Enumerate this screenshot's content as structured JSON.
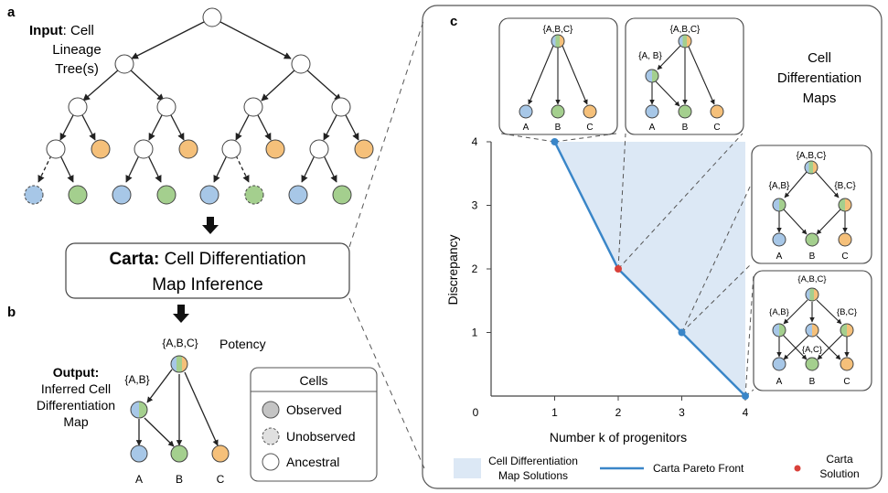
{
  "colors": {
    "blue": "#a7c7e7",
    "green": "#a4cf8e",
    "orange": "#f5c07a",
    "ancestral": "#ffffff",
    "stroke": "#333333",
    "pareto": "#3a86c8",
    "solution": "#d9413a",
    "shade": "#dce8f5"
  },
  "panel_a": {
    "letter": "a",
    "input_bold": "Input",
    "input_rest": ": Cell",
    "input_line2": "Lineage",
    "input_line3": "Tree(s)"
  },
  "carta_box": {
    "bold": "Carta:",
    "line1_rest": " Cell Differentiation",
    "line2": "Map Inference"
  },
  "panel_b": {
    "letter": "b",
    "output_bold": "Output:",
    "output_line2": "Inferred Cell",
    "output_line3": "Differentiation",
    "output_line4": "Map",
    "potency_label": "Potency",
    "root_label": "{A,B,C}",
    "mid_label": "{A,B}",
    "leaf_labels": [
      "A",
      "B",
      "C"
    ]
  },
  "legend_cells": {
    "title": "Cells",
    "items": [
      "Observed",
      "Unobserved",
      "Ancestral"
    ]
  },
  "panel_c": {
    "letter": "c",
    "maps_title_line1": "Cell",
    "maps_title_line2": "Differentiation",
    "maps_title_line3": "Maps",
    "map1": {
      "root": "{A,B,C}",
      "leaves": [
        "A",
        "B",
        "C"
      ]
    },
    "map2": {
      "root": "{A,B,C}",
      "mid": "{A, B}",
      "leaves": [
        "A",
        "B",
        "C"
      ]
    },
    "map3": {
      "root": "{A,B,C}",
      "mid_left": "{A,B}",
      "mid_right": "{B,C}",
      "leaves": [
        "A",
        "B",
        "C"
      ]
    },
    "map4": {
      "root": "{A,B,C}",
      "mid_left": "{A,B}",
      "mid_right": "{B,C}",
      "mid_center": "{A,C}",
      "leaves": [
        "A",
        "B",
        "C"
      ]
    },
    "legend": {
      "shade_line1": "Cell Differentiation",
      "shade_line2": "Map Solutions",
      "line": "Carta Pareto Front",
      "dot_line1": "Carta",
      "dot_line2": "Solution"
    }
  },
  "chart_data": {
    "type": "line",
    "xlabel": "Number k of progenitors",
    "ylabel": "Discrepancy",
    "origin_label": "0",
    "x_ticks": [
      1,
      2,
      3,
      4
    ],
    "y_ticks": [
      1,
      2,
      3,
      4
    ],
    "xlim": [
      0,
      4
    ],
    "ylim": [
      0,
      4
    ],
    "pareto_x": [
      1,
      2,
      3,
      4
    ],
    "pareto_y": [
      4,
      2,
      1,
      0
    ],
    "solution_point": {
      "x": 2,
      "y": 2
    },
    "grid": false
  }
}
